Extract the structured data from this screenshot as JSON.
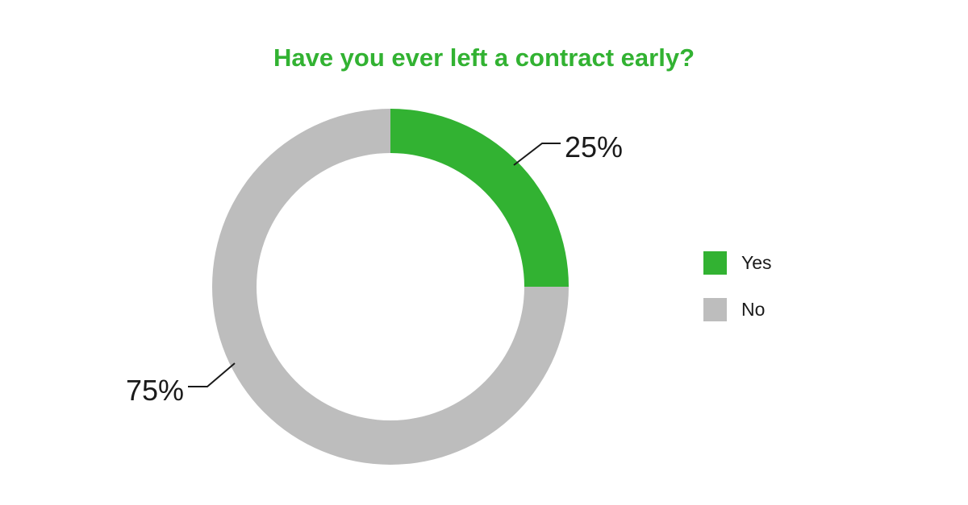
{
  "chart_data": {
    "type": "pie",
    "variant": "donut",
    "title": "Have you ever left a contract early?",
    "categories": [
      "Yes",
      "No"
    ],
    "values": [
      25,
      75
    ],
    "labels": [
      "25%",
      "75%"
    ],
    "colors": [
      "#32b232",
      "#bdbdbd"
    ],
    "start_angle": "12 o'clock, clockwise",
    "legend": {
      "position": "right",
      "entries": [
        "Yes",
        "No"
      ]
    }
  },
  "title_color": "#32b232"
}
